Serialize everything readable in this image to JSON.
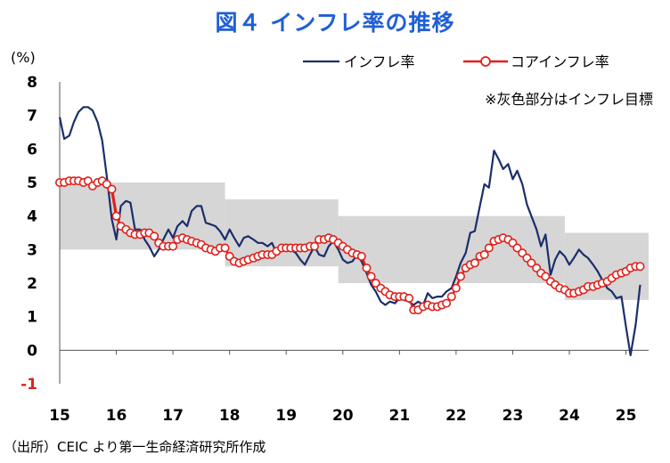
{
  "title": "図４ インフレ率の推移",
  "source": "（出所）CEIC より第一生命経済研究所作成",
  "chart_data": {
    "type": "line",
    "ylabel": "(%)",
    "ylim": [
      -1,
      8
    ],
    "yticks": [
      "8",
      "7",
      "6",
      "5",
      "4",
      "3",
      "2",
      "1",
      "0",
      "-1"
    ],
    "xlim": [
      2015,
      2025.4
    ],
    "xticks": [
      "15",
      "16",
      "17",
      "18",
      "19",
      "20",
      "21",
      "22",
      "23",
      "24",
      "25"
    ],
    "note": "※灰色部分はインフレ目標",
    "colors": {
      "inflation": "#1b2f6b",
      "core": "#e0201b",
      "band": "#d6d6d6",
      "neg_tick": "#e0201b",
      "title": "#1f5fd6"
    },
    "target_band": [
      {
        "x0": 2015.0,
        "x1": 2017.92,
        "low": 3.0,
        "high": 5.0
      },
      {
        "x0": 2017.92,
        "x1": 2019.92,
        "low": 2.5,
        "high": 4.5
      },
      {
        "x0": 2019.92,
        "x1": 2023.92,
        "low": 2.0,
        "high": 4.0
      },
      {
        "x0": 2023.92,
        "x1": 2025.4,
        "low": 1.5,
        "high": 3.5
      }
    ],
    "series": [
      {
        "name": "インフレ率",
        "style": "line",
        "points": [
          [
            2015.0,
            6.95
          ],
          [
            2015.08,
            6.3
          ],
          [
            2015.17,
            6.4
          ],
          [
            2015.25,
            6.8
          ],
          [
            2015.33,
            7.1
          ],
          [
            2015.42,
            7.25
          ],
          [
            2015.5,
            7.25
          ],
          [
            2015.58,
            7.15
          ],
          [
            2015.67,
            6.8
          ],
          [
            2015.75,
            6.25
          ],
          [
            2015.83,
            5.2
          ],
          [
            2015.92,
            3.9
          ],
          [
            2016.0,
            3.3
          ],
          [
            2016.08,
            4.3
          ],
          [
            2016.17,
            4.45
          ],
          [
            2016.25,
            4.4
          ],
          [
            2016.33,
            3.6
          ],
          [
            2016.42,
            3.6
          ],
          [
            2016.5,
            3.3
          ],
          [
            2016.58,
            3.1
          ],
          [
            2016.67,
            2.8
          ],
          [
            2016.75,
            3.0
          ],
          [
            2016.83,
            3.3
          ],
          [
            2016.92,
            3.6
          ],
          [
            2017.0,
            3.35
          ],
          [
            2017.08,
            3.7
          ],
          [
            2017.17,
            3.85
          ],
          [
            2017.25,
            3.7
          ],
          [
            2017.33,
            4.15
          ],
          [
            2017.42,
            4.3
          ],
          [
            2017.5,
            4.3
          ],
          [
            2017.58,
            3.8
          ],
          [
            2017.67,
            3.75
          ],
          [
            2017.75,
            3.7
          ],
          [
            2017.83,
            3.55
          ],
          [
            2017.92,
            3.3
          ],
          [
            2018.0,
            3.6
          ],
          [
            2018.08,
            3.35
          ],
          [
            2018.17,
            3.1
          ],
          [
            2018.25,
            3.35
          ],
          [
            2018.33,
            3.4
          ],
          [
            2018.42,
            3.3
          ],
          [
            2018.5,
            3.2
          ],
          [
            2018.58,
            3.2
          ],
          [
            2018.67,
            3.1
          ],
          [
            2018.75,
            3.2
          ],
          [
            2018.83,
            2.9
          ],
          [
            2018.92,
            3.1
          ],
          [
            2019.0,
            3.15
          ],
          [
            2019.08,
            3.0
          ],
          [
            2019.17,
            2.9
          ],
          [
            2019.25,
            2.7
          ],
          [
            2019.33,
            2.55
          ],
          [
            2019.42,
            2.85
          ],
          [
            2019.5,
            3.1
          ],
          [
            2019.58,
            2.85
          ],
          [
            2019.67,
            2.8
          ],
          [
            2019.75,
            3.1
          ],
          [
            2019.83,
            3.25
          ],
          [
            2019.92,
            3.0
          ],
          [
            2020.0,
            2.7
          ],
          [
            2020.08,
            2.6
          ],
          [
            2020.17,
            2.65
          ],
          [
            2020.25,
            2.85
          ],
          [
            2020.33,
            2.65
          ],
          [
            2020.42,
            2.3
          ],
          [
            2020.5,
            1.95
          ],
          [
            2020.58,
            1.75
          ],
          [
            2020.67,
            1.45
          ],
          [
            2020.75,
            1.35
          ],
          [
            2020.83,
            1.45
          ],
          [
            2020.92,
            1.4
          ],
          [
            2021.0,
            1.55
          ],
          [
            2021.08,
            1.5
          ],
          [
            2021.17,
            1.45
          ],
          [
            2021.25,
            1.35
          ],
          [
            2021.33,
            1.45
          ],
          [
            2021.42,
            1.35
          ],
          [
            2021.5,
            1.7
          ],
          [
            2021.58,
            1.55
          ],
          [
            2021.67,
            1.6
          ],
          [
            2021.75,
            1.6
          ],
          [
            2021.83,
            1.75
          ],
          [
            2021.92,
            1.85
          ],
          [
            2022.0,
            2.2
          ],
          [
            2022.08,
            2.6
          ],
          [
            2022.17,
            2.9
          ],
          [
            2022.25,
            3.5
          ],
          [
            2022.33,
            3.55
          ],
          [
            2022.42,
            4.3
          ],
          [
            2022.5,
            4.95
          ],
          [
            2022.58,
            4.85
          ],
          [
            2022.67,
            5.95
          ],
          [
            2022.75,
            5.7
          ],
          [
            2022.83,
            5.4
          ],
          [
            2022.92,
            5.55
          ],
          [
            2023.0,
            5.1
          ],
          [
            2023.08,
            5.35
          ],
          [
            2023.17,
            4.95
          ],
          [
            2023.25,
            4.35
          ],
          [
            2023.33,
            4.0
          ],
          [
            2023.42,
            3.6
          ],
          [
            2023.5,
            3.1
          ],
          [
            2023.58,
            3.45
          ],
          [
            2023.67,
            2.25
          ],
          [
            2023.75,
            2.7
          ],
          [
            2023.83,
            2.95
          ],
          [
            2023.92,
            2.8
          ],
          [
            2024.0,
            2.55
          ],
          [
            2024.08,
            2.75
          ],
          [
            2024.17,
            3.0
          ],
          [
            2024.25,
            2.85
          ],
          [
            2024.33,
            2.75
          ],
          [
            2024.42,
            2.55
          ],
          [
            2024.5,
            2.35
          ],
          [
            2024.58,
            2.1
          ],
          [
            2024.67,
            1.85
          ],
          [
            2024.75,
            1.75
          ],
          [
            2024.83,
            1.55
          ],
          [
            2024.92,
            1.6
          ],
          [
            2025.0,
            0.7
          ],
          [
            2025.08,
            -0.15
          ],
          [
            2025.17,
            0.75
          ],
          [
            2025.25,
            1.95
          ]
        ]
      },
      {
        "name": "コアインフレ率",
        "style": "line-marker",
        "points": [
          [
            2015.0,
            5.0
          ],
          [
            2015.08,
            5.0
          ],
          [
            2015.17,
            5.05
          ],
          [
            2015.25,
            5.05
          ],
          [
            2015.33,
            5.05
          ],
          [
            2015.42,
            5.0
          ],
          [
            2015.5,
            5.05
          ],
          [
            2015.58,
            4.9
          ],
          [
            2015.67,
            5.0
          ],
          [
            2015.75,
            5.05
          ],
          [
            2015.83,
            4.95
          ],
          [
            2015.92,
            4.8
          ],
          [
            2016.0,
            4.0
          ],
          [
            2016.08,
            3.7
          ],
          [
            2016.17,
            3.6
          ],
          [
            2016.25,
            3.5
          ],
          [
            2016.33,
            3.45
          ],
          [
            2016.42,
            3.45
          ],
          [
            2016.5,
            3.5
          ],
          [
            2016.58,
            3.5
          ],
          [
            2016.67,
            3.4
          ],
          [
            2016.75,
            3.2
          ],
          [
            2016.83,
            3.1
          ],
          [
            2016.92,
            3.1
          ],
          [
            2017.0,
            3.1
          ],
          [
            2017.08,
            3.3
          ],
          [
            2017.17,
            3.35
          ],
          [
            2017.25,
            3.3
          ],
          [
            2017.33,
            3.25
          ],
          [
            2017.42,
            3.2
          ],
          [
            2017.5,
            3.15
          ],
          [
            2017.58,
            3.05
          ],
          [
            2017.67,
            3.0
          ],
          [
            2017.75,
            2.95
          ],
          [
            2017.83,
            3.05
          ],
          [
            2017.92,
            3.05
          ],
          [
            2018.0,
            2.8
          ],
          [
            2018.08,
            2.65
          ],
          [
            2018.17,
            2.6
          ],
          [
            2018.25,
            2.65
          ],
          [
            2018.33,
            2.7
          ],
          [
            2018.42,
            2.75
          ],
          [
            2018.5,
            2.8
          ],
          [
            2018.58,
            2.85
          ],
          [
            2018.67,
            2.85
          ],
          [
            2018.75,
            2.85
          ],
          [
            2018.83,
            2.95
          ],
          [
            2018.92,
            3.05
          ],
          [
            2019.0,
            3.05
          ],
          [
            2019.08,
            3.05
          ],
          [
            2019.17,
            3.05
          ],
          [
            2019.25,
            3.05
          ],
          [
            2019.33,
            3.05
          ],
          [
            2019.42,
            3.1
          ],
          [
            2019.5,
            3.1
          ],
          [
            2019.58,
            3.3
          ],
          [
            2019.67,
            3.3
          ],
          [
            2019.75,
            3.35
          ],
          [
            2019.83,
            3.3
          ],
          [
            2019.92,
            3.2
          ],
          [
            2020.0,
            3.1
          ],
          [
            2020.08,
            3.0
          ],
          [
            2020.17,
            2.9
          ],
          [
            2020.25,
            2.85
          ],
          [
            2020.33,
            2.8
          ],
          [
            2020.42,
            2.45
          ],
          [
            2020.5,
            2.2
          ],
          [
            2020.58,
            2.0
          ],
          [
            2020.67,
            1.85
          ],
          [
            2020.75,
            1.75
          ],
          [
            2020.83,
            1.65
          ],
          [
            2020.92,
            1.6
          ],
          [
            2021.0,
            1.6
          ],
          [
            2021.08,
            1.6
          ],
          [
            2021.17,
            1.55
          ],
          [
            2021.25,
            1.2
          ],
          [
            2021.33,
            1.2
          ],
          [
            2021.42,
            1.3
          ],
          [
            2021.5,
            1.35
          ],
          [
            2021.58,
            1.3
          ],
          [
            2021.67,
            1.3
          ],
          [
            2021.75,
            1.35
          ],
          [
            2021.83,
            1.4
          ],
          [
            2021.92,
            1.6
          ],
          [
            2022.0,
            1.85
          ],
          [
            2022.08,
            2.2
          ],
          [
            2022.17,
            2.45
          ],
          [
            2022.25,
            2.55
          ],
          [
            2022.33,
            2.6
          ],
          [
            2022.42,
            2.8
          ],
          [
            2022.5,
            2.85
          ],
          [
            2022.58,
            3.05
          ],
          [
            2022.67,
            3.25
          ],
          [
            2022.75,
            3.3
          ],
          [
            2022.83,
            3.35
          ],
          [
            2022.92,
            3.3
          ],
          [
            2023.0,
            3.2
          ],
          [
            2023.08,
            3.05
          ],
          [
            2023.17,
            2.9
          ],
          [
            2023.25,
            2.75
          ],
          [
            2023.33,
            2.6
          ],
          [
            2023.42,
            2.45
          ],
          [
            2023.5,
            2.3
          ],
          [
            2023.58,
            2.2
          ],
          [
            2023.67,
            2.05
          ],
          [
            2023.75,
            1.95
          ],
          [
            2023.83,
            1.85
          ],
          [
            2023.92,
            1.8
          ],
          [
            2024.0,
            1.7
          ],
          [
            2024.08,
            1.7
          ],
          [
            2024.17,
            1.75
          ],
          [
            2024.25,
            1.8
          ],
          [
            2024.33,
            1.9
          ],
          [
            2024.42,
            1.9
          ],
          [
            2024.5,
            1.95
          ],
          [
            2024.58,
            2.0
          ],
          [
            2024.67,
            2.05
          ],
          [
            2024.75,
            2.15
          ],
          [
            2024.83,
            2.25
          ],
          [
            2024.92,
            2.3
          ],
          [
            2025.0,
            2.35
          ],
          [
            2025.08,
            2.45
          ],
          [
            2025.17,
            2.5
          ],
          [
            2025.25,
            2.5
          ]
        ]
      }
    ],
    "highlight_segments": [
      [
        2015.83,
        2016.0
      ]
    ]
  }
}
